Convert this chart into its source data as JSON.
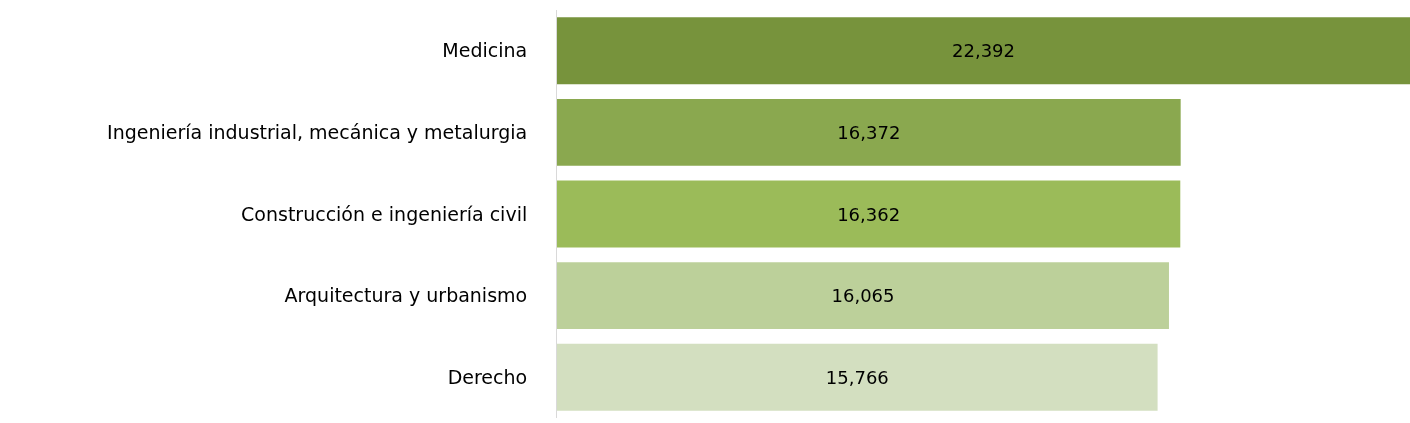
{
  "chart_data": {
    "type": "bar",
    "orientation": "horizontal",
    "categories": [
      "Medicina",
      "Ingeniería industrial, mecánica y metalurgia",
      "Construcción e ingeniería civil",
      "Arquitectura y urbanismo",
      "Derecho"
    ],
    "values": [
      22392,
      16372,
      16362,
      16065,
      15766
    ],
    "value_labels": [
      "22,392",
      "16,372",
      "16,362",
      "16,065",
      "15,766"
    ],
    "colors": [
      "#77933c",
      "#8aa84f",
      "#9bbb59",
      "#bcd09a",
      "#d3dfc0"
    ],
    "xlim": [
      0,
      22392
    ],
    "tick_labels": "y"
  }
}
